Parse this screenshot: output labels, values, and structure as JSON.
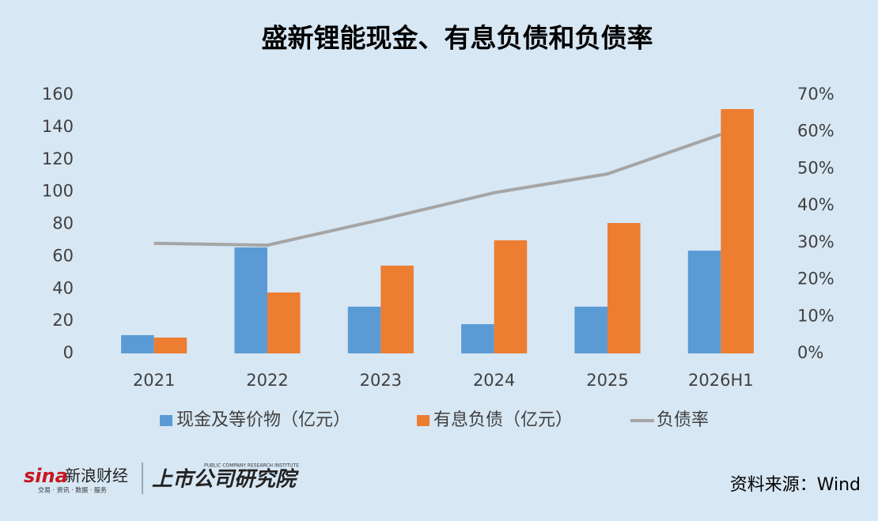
{
  "chart_data": {
    "type": "bar",
    "title": "盛新锂能现金、有息负债和负债率",
    "categories": [
      "2021",
      "2022",
      "2023",
      "2024",
      "2025",
      "2026H1"
    ],
    "series": [
      {
        "name": "现金及等价物（亿元）",
        "color": "#5b9bd5",
        "values": [
          11.3,
          65.6,
          28.9,
          18.1,
          28.9,
          63.6
        ]
      },
      {
        "name": "有息负债（亿元）",
        "color": "#ed7d31",
        "values": [
          9.8,
          37.7,
          54.3,
          70.0,
          80.7,
          151.2
        ]
      },
      {
        "name": "负债率",
        "color": "#a5a5a5",
        "type": "line",
        "axis": "y2",
        "values": [
          29.8,
          29.3,
          36.2,
          43.5,
          48.6,
          59.3
        ]
      }
    ],
    "ylim": [
      0,
      160
    ],
    "yticks": [
      0,
      20,
      40,
      60,
      80,
      100,
      120,
      140,
      160
    ],
    "y2lim": [
      0,
      70
    ],
    "y2ticks": [
      {
        "value": 0,
        "label": "0%"
      },
      {
        "value": 10,
        "label": "10%"
      },
      {
        "value": 20,
        "label": "20%"
      },
      {
        "value": 30,
        "label": "30%"
      },
      {
        "value": 40,
        "label": "40%"
      },
      {
        "value": 50,
        "label": "50%"
      },
      {
        "value": 60,
        "label": "60%"
      },
      {
        "value": 70,
        "label": "70%"
      }
    ],
    "grid": false,
    "legend": "bottom",
    "source": "资料来源：Wind"
  },
  "branding": {
    "sina": "sina",
    "sina_name": "新浪财经",
    "sina_slogan": "交易 · 资讯 · 数据 · 服务",
    "institute": "上市公司研究院",
    "institute_en": "PUBLIC COMPANY RESEARCH INSTITUTE"
  }
}
